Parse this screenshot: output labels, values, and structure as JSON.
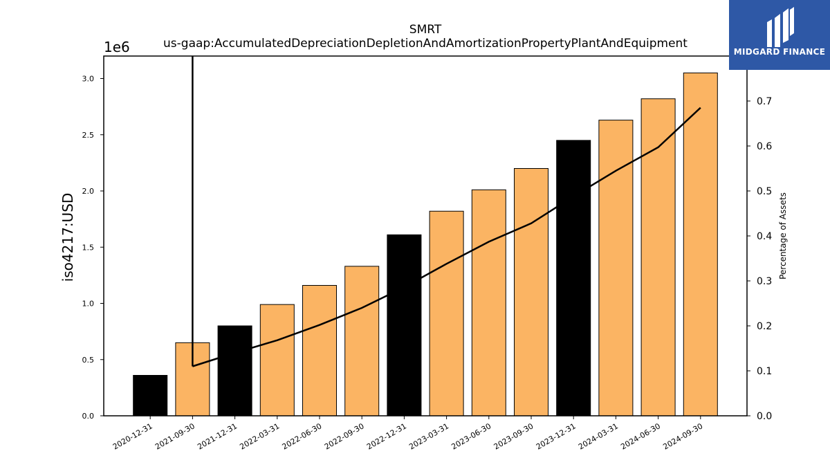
{
  "chart_data": {
    "type": "bar",
    "title": "SMRT",
    "subtitle": "us-gaap:AccumulatedDepreciationDepletionAndAmortizationPropertyPlantAndEquipment",
    "ylabel": "iso4217:USD",
    "y_offset_label": "1e6",
    "y2label": "Percentage of Assets",
    "ylim": [
      0,
      3.2
    ],
    "y_ticks": [
      "0.0",
      "0.5",
      "1.0",
      "1.5",
      "2.0",
      "2.5",
      "3.0"
    ],
    "y2lim": [
      0,
      0.8
    ],
    "y2_ticks": [
      "0.0",
      "0.1",
      "0.2",
      "0.3",
      "0.4",
      "0.5",
      "0.6",
      "0.7"
    ],
    "categories": [
      "2020-12-31",
      "2021-09-30",
      "2021-12-31",
      "2022-03-31",
      "2022-06-30",
      "2022-09-30",
      "2022-12-31",
      "2023-03-31",
      "2023-06-30",
      "2023-09-30",
      "2023-12-31",
      "2024-03-31",
      "2024-06-30",
      "2024-09-30"
    ],
    "series": [
      {
        "values": [
          0.36,
          0.65,
          0.8,
          0.99,
          1.16,
          1.33,
          1.61,
          1.82,
          2.01,
          2.2,
          2.45,
          2.63,
          2.82,
          3.05
        ],
        "colors": [
          "#000000",
          "#fbb463",
          "#000000",
          "#fbb463",
          "#fbb463",
          "#fbb463",
          "#000000",
          "#fbb463",
          "#fbb463",
          "#fbb463",
          "#000000",
          "#fbb463",
          "#fbb463",
          "#fbb463"
        ]
      },
      {
        "type": "line",
        "axis": "right",
        "values": [
          null,
          0.11,
          0.14,
          0.168,
          0.202,
          0.24,
          0.286,
          0.338,
          0.387,
          0.428,
          0.488,
          0.545,
          0.597,
          0.685
        ],
        "spike": {
          "category": "2021-09-30",
          "from": 0.11,
          "to": 0.8
        },
        "color": "#000000"
      }
    ],
    "grid": false
  },
  "logo": {
    "text": "MIDGARD FINANCE",
    "background": "#2e58a6"
  }
}
